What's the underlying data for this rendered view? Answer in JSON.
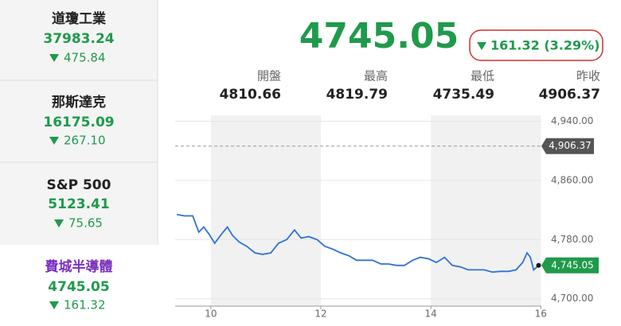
{
  "sidebar": [
    {
      "name": "道瓊工業",
      "value": "37983.24",
      "change": "475.84"
    },
    {
      "name": "那斯達克",
      "value": "16175.09",
      "change": "267.10"
    },
    {
      "name": "S&P 500",
      "value": "5123.41",
      "change": "75.65"
    },
    {
      "name": "費城半導體",
      "value": "4745.05",
      "change": "161.32"
    }
  ],
  "quote": {
    "price": "4745.05",
    "change": "161.32 (3.29%)",
    "stats": [
      {
        "label": "開盤",
        "value": "4810.66"
      },
      {
        "label": "最高",
        "value": "4819.79"
      },
      {
        "label": "最低",
        "value": "4735.49"
      },
      {
        "label": "昨收",
        "value": "4906.37"
      }
    ]
  },
  "chart": {
    "type": "line",
    "color": "#2f72d6",
    "x": [
      9.38,
      9.52,
      9.67,
      9.78,
      9.87,
      9.96,
      10.07,
      10.22,
      10.3,
      10.39,
      10.51,
      10.65,
      10.8,
      10.94,
      11.09,
      11.23,
      11.38,
      11.52,
      11.64,
      11.78,
      11.93,
      12.07,
      12.22,
      12.36,
      12.51,
      12.65,
      12.8,
      12.94,
      13.09,
      13.23,
      13.38,
      13.52,
      13.67,
      13.81,
      13.96,
      14.1,
      14.25,
      14.39,
      14.54,
      14.68,
      14.83,
      14.97,
      15.12,
      15.26,
      15.41,
      15.55,
      15.67,
      15.75,
      15.81,
      15.87,
      15.96
    ],
    "values": [
      4814,
      4812,
      4812,
      4790,
      4797,
      4788,
      4775,
      4790,
      4797,
      4786,
      4777,
      4771,
      4762,
      4760,
      4762,
      4775,
      4780,
      4793,
      4782,
      4784,
      4780,
      4771,
      4767,
      4762,
      4758,
      4752,
      4752,
      4752,
      4747,
      4747,
      4745,
      4745,
      4752,
      4756,
      4754,
      4749,
      4756,
      4745,
      4743,
      4739,
      4739,
      4739,
      4736,
      4737,
      4737,
      4739,
      4749,
      4762,
      4756,
      4739,
      4745.05
    ],
    "xlim": [
      9.35,
      16.01
    ],
    "xticks": [
      10,
      12,
      14,
      16
    ],
    "ylim": [
      4690,
      4948
    ],
    "yticks": [
      {
        "value": 4700,
        "label": "4,700.00"
      },
      {
        "value": 4780,
        "label": "4,780.00"
      },
      {
        "value": 4860,
        "label": "4,860.00"
      },
      {
        "value": 4940,
        "label": "4,940.00"
      }
    ],
    "reference_line": {
      "value": 4906.37,
      "label": "4,906.37"
    },
    "last_label": "4,745.05",
    "grid": true
  }
}
